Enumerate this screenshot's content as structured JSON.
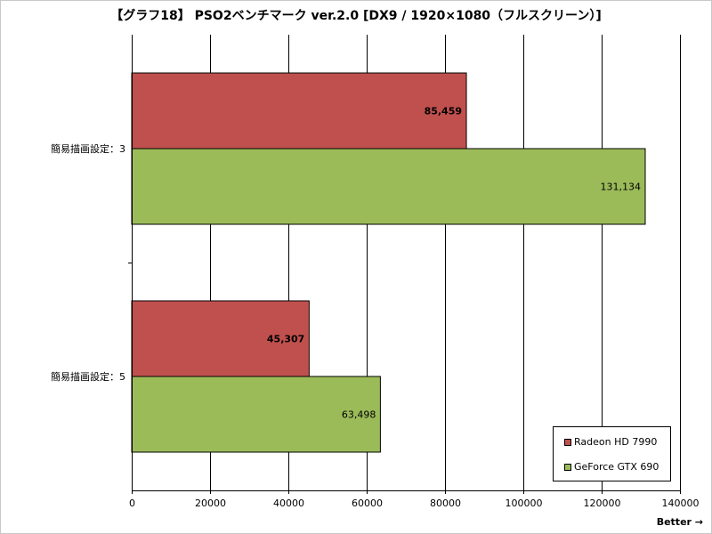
{
  "title": "【グラフ18】 PSO2ベンチマーク ver.2.0 [DX9 / 1920×1080（フルスクリーン）]",
  "better_label": "Better →",
  "chart_data": {
    "type": "bar",
    "orientation": "horizontal",
    "title": "【グラフ18】 PSO2ベンチマーク ver.2.0 [DX9 / 1920×1080（フルスクリーン）]",
    "categories": [
      "簡易描画設定：3",
      "簡易描画設定：5"
    ],
    "series": [
      {
        "name": "Radeon HD 7990",
        "color": "#c0504d",
        "values": [
          85459,
          45307
        ],
        "labels": [
          "85,459",
          "45,307"
        ],
        "label_bold": true
      },
      {
        "name": "GeForce GTX 690",
        "color": "#9bbb59",
        "values": [
          131134,
          63498
        ],
        "labels": [
          "131,134",
          "63,498"
        ],
        "label_bold": false
      }
    ],
    "xlim": [
      0,
      140000
    ],
    "xticks": [
      0,
      20000,
      40000,
      60000,
      80000,
      100000,
      120000,
      140000
    ],
    "xtick_labels": [
      "0",
      "20000",
      "40000",
      "60000",
      "80000",
      "100000",
      "120000",
      "140000"
    ],
    "grid": "vertical",
    "legend_position": "bottom-right"
  }
}
